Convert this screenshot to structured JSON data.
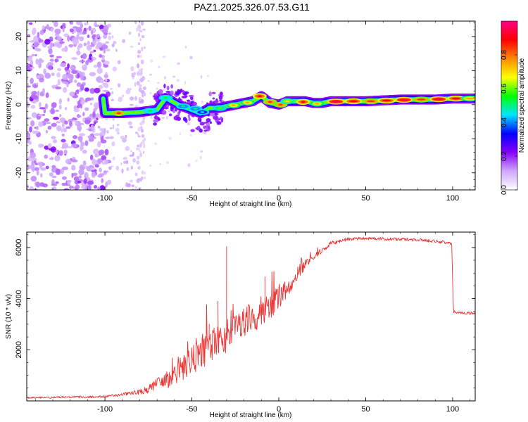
{
  "title": "PAZ1.2025.326.07.53.G11",
  "chart_data": [
    {
      "type": "heatmap",
      "xlabel": "Height of straight line (km)",
      "ylabel": "Frequency (Hz)",
      "xlim": [
        -145,
        113
      ],
      "ylim": [
        -25,
        24.5
      ],
      "xticks": [
        -100,
        -50,
        0,
        50,
        100
      ],
      "yticks": [
        -20,
        -10,
        0,
        10,
        20
      ],
      "colorbar": {
        "label": "Normalized spectral amplitude",
        "range": [
          0,
          1
        ],
        "ticks": [
          "0.0",
          "0.2",
          "0.4",
          "0.6",
          "0.8"
        ],
        "colors": [
          "#ffffff",
          "#cfa8ff",
          "#8800ff",
          "#0000ff",
          "#00e5ff",
          "#00ff00",
          "#ffff00",
          "#ff8800",
          "#ff0000",
          "#ff0088"
        ]
      },
      "ridge": [
        {
          "x": -100,
          "f": -2.5
        },
        {
          "x": -90,
          "f": -2.5
        },
        {
          "x": -80,
          "f": -2.2
        },
        {
          "x": -70,
          "f": -1.5
        },
        {
          "x": -65,
          "f": 2.0
        },
        {
          "x": -58,
          "f": 0.0
        },
        {
          "x": -50,
          "f": -1.5
        },
        {
          "x": -45,
          "f": -2.5
        },
        {
          "x": -40,
          "f": -1.0
        },
        {
          "x": -35,
          "f": -1.0
        },
        {
          "x": -30,
          "f": -0.5
        },
        {
          "x": -25,
          "f": 0.0
        },
        {
          "x": -20,
          "f": 0.5
        },
        {
          "x": -15,
          "f": 1.0
        },
        {
          "x": -10,
          "f": 2.5
        },
        {
          "x": -5,
          "f": 0.5
        },
        {
          "x": 0,
          "f": 0.0
        },
        {
          "x": 5,
          "f": 1.0
        },
        {
          "x": 15,
          "f": 1.0
        },
        {
          "x": 20,
          "f": 0.5
        },
        {
          "x": 25,
          "f": 0.5
        },
        {
          "x": 30,
          "f": 1.0
        },
        {
          "x": 50,
          "f": 1.0
        },
        {
          "x": 70,
          "f": 1.5
        },
        {
          "x": 90,
          "f": 1.5
        },
        {
          "x": 100,
          "f": 1.8
        },
        {
          "x": 113,
          "f": 1.8
        }
      ],
      "hotspots": [
        {
          "x": -92,
          "f": -2.5,
          "amp": 0.85
        },
        {
          "x": -74,
          "f": -1.8,
          "amp": 0.55
        },
        {
          "x": -65,
          "f": 2.0,
          "amp": 0.55
        },
        {
          "x": -55,
          "f": -0.5,
          "amp": 0.5
        },
        {
          "x": -48,
          "f": -1.2,
          "amp": 0.5
        },
        {
          "x": -44,
          "f": -2.2,
          "amp": 0.45
        },
        {
          "x": -34,
          "f": -1.0,
          "amp": 0.6
        },
        {
          "x": -26,
          "f": -0.2,
          "amp": 0.75
        },
        {
          "x": -18,
          "f": 0.6,
          "amp": 0.75
        },
        {
          "x": -11,
          "f": 2.5,
          "amp": 0.9
        },
        {
          "x": -5,
          "f": 0.8,
          "amp": 0.85
        },
        {
          "x": 1,
          "f": 0.0,
          "amp": 0.85
        },
        {
          "x": 5,
          "f": 1.0,
          "amp": 0.7
        },
        {
          "x": 14,
          "f": 0.8,
          "amp": 0.9
        },
        {
          "x": 22,
          "f": 0.3,
          "amp": 0.75
        },
        {
          "x": 33,
          "f": 0.9,
          "amp": 0.95
        },
        {
          "x": 43,
          "f": 1.0,
          "amp": 0.9
        },
        {
          "x": 53,
          "f": 1.0,
          "amp": 0.85
        },
        {
          "x": 62,
          "f": 1.2,
          "amp": 0.9
        },
        {
          "x": 72,
          "f": 1.4,
          "amp": 0.95
        },
        {
          "x": 82,
          "f": 1.5,
          "amp": 0.85
        },
        {
          "x": 92,
          "f": 1.6,
          "amp": 0.95
        },
        {
          "x": 102,
          "f": 1.8,
          "amp": 0.9
        },
        {
          "x": 110,
          "f": 1.8,
          "amp": 0.75
        }
      ]
    },
    {
      "type": "line",
      "xlabel": "Height of straight line (km)",
      "ylabel": "SNR (10 * v/v)",
      "xlim": [
        -145,
        113
      ],
      "ylim": [
        0,
        6600
      ],
      "xticks": [
        -100,
        -50,
        0,
        50,
        100
      ],
      "yticks": [
        2000,
        4000,
        6000
      ],
      "line_color": "#ee3333",
      "series": [
        {
          "name": "SNR",
          "x": [
            -145,
            -120,
            -100,
            -90,
            -80,
            -75,
            -70,
            -65,
            -60,
            -55,
            -50,
            -45,
            -40,
            -35,
            -30,
            -25,
            -20,
            -15,
            -10,
            -5,
            0,
            5,
            10,
            15,
            20,
            25,
            30,
            35,
            40,
            45,
            50,
            60,
            70,
            80,
            90,
            95,
            99.5,
            100.5,
            105,
            113
          ],
          "y": [
            120,
            150,
            170,
            250,
            350,
            450,
            650,
            800,
            1000,
            1200,
            1550,
            1800,
            2050,
            2350,
            2600,
            2900,
            3100,
            3300,
            3450,
            3700,
            4000,
            4400,
            4900,
            5300,
            5600,
            5900,
            6150,
            6250,
            6330,
            6350,
            6360,
            6330,
            6320,
            6300,
            6250,
            6200,
            6150,
            3480,
            3450,
            3420
          ],
          "noise": [
            30,
            40,
            45,
            60,
            100,
            160,
            220,
            350,
            400,
            450,
            600,
            700,
            650,
            700,
            700,
            650,
            600,
            600,
            550,
            500,
            450,
            350,
            250,
            180,
            130,
            100,
            90,
            80,
            70,
            60,
            60,
            60,
            60,
            60,
            60,
            60,
            60,
            60,
            60,
            60
          ],
          "spikes": [
            {
              "x": -30,
              "y": 6030
            },
            {
              "x": -35,
              "y": 3900
            },
            {
              "x": -8,
              "y": 4850
            },
            {
              "x": -40,
              "y": 3000
            }
          ]
        }
      ]
    }
  ]
}
